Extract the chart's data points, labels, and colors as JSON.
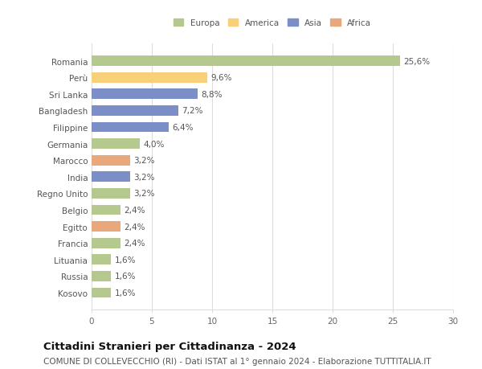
{
  "countries": [
    "Romania",
    "Perù",
    "Sri Lanka",
    "Bangladesh",
    "Filippine",
    "Germania",
    "Marocco",
    "India",
    "Regno Unito",
    "Belgio",
    "Egitto",
    "Francia",
    "Lituania",
    "Russia",
    "Kosovo"
  ],
  "values": [
    25.6,
    9.6,
    8.8,
    7.2,
    6.4,
    4.0,
    3.2,
    3.2,
    3.2,
    2.4,
    2.4,
    2.4,
    1.6,
    1.6,
    1.6
  ],
  "labels": [
    "25,6%",
    "9,6%",
    "8,8%",
    "7,2%",
    "6,4%",
    "4,0%",
    "3,2%",
    "3,2%",
    "3,2%",
    "2,4%",
    "2,4%",
    "2,4%",
    "1,6%",
    "1,6%",
    "1,6%"
  ],
  "continents": [
    "Europa",
    "America",
    "Asia",
    "Asia",
    "Asia",
    "Europa",
    "Africa",
    "Asia",
    "Europa",
    "Europa",
    "Africa",
    "Europa",
    "Europa",
    "Europa",
    "Europa"
  ],
  "colors": {
    "Europa": "#b5c98e",
    "America": "#f9d07a",
    "Asia": "#7b8ec8",
    "Africa": "#e8a87c"
  },
  "legend_order": [
    "Europa",
    "America",
    "Asia",
    "Africa"
  ],
  "xlim": [
    0,
    30
  ],
  "xticks": [
    0,
    5,
    10,
    15,
    20,
    25,
    30
  ],
  "title": "Cittadini Stranieri per Cittadinanza - 2024",
  "subtitle": "COMUNE DI COLLEVECCHIO (RI) - Dati ISTAT al 1° gennaio 2024 - Elaborazione TUTTITALIA.IT",
  "bg_color": "#ffffff",
  "grid_color": "#dddddd",
  "bar_height": 0.62,
  "label_fontsize": 7.5,
  "tick_fontsize": 7.5,
  "title_fontsize": 9.5,
  "subtitle_fontsize": 7.5
}
